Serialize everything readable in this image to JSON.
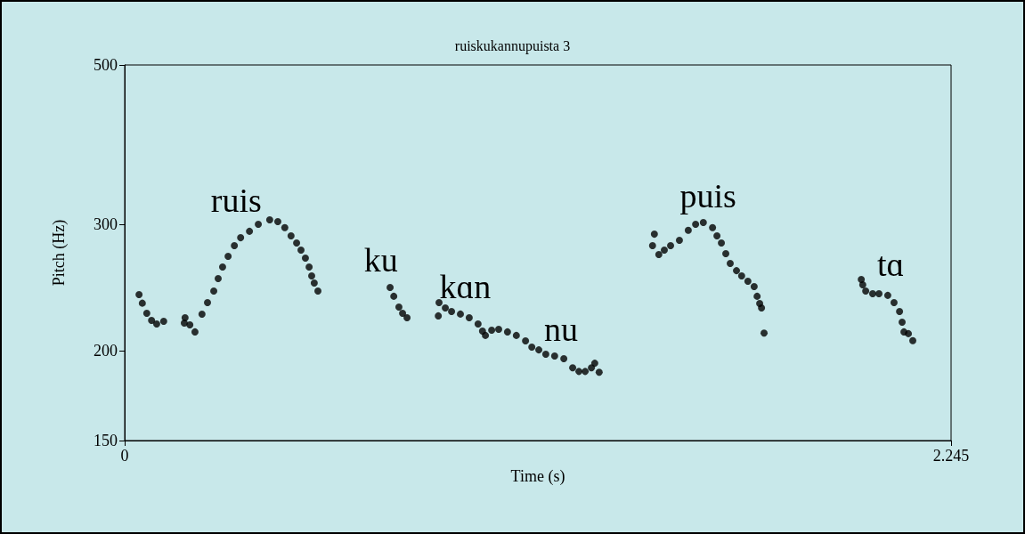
{
  "chart_data": {
    "type": "scatter",
    "title": "ruiskukannupuista 3",
    "xlabel": "Time (s)",
    "ylabel": "Pitch (Hz)",
    "log": "y",
    "marker": "circle",
    "grid": false,
    "xlim": [
      0,
      2.245
    ],
    "xticks": [
      0,
      2.245
    ],
    "ylim": [
      150,
      500
    ],
    "yticks": [
      150,
      200,
      300,
      500
    ],
    "x": [
      0.039,
      0.048,
      0.06,
      0.073,
      0.087,
      0.106,
      0.162,
      0.164,
      0.177,
      0.191,
      0.21,
      0.225,
      0.242,
      0.254,
      0.266,
      0.281,
      0.298,
      0.315,
      0.339,
      0.363,
      0.394,
      0.416,
      0.435,
      0.452,
      0.467,
      0.479,
      0.491,
      0.501,
      0.508,
      0.515,
      0.525,
      0.721,
      0.731,
      0.745,
      0.755,
      0.767,
      0.852,
      0.854,
      0.871,
      0.888,
      0.912,
      0.936,
      0.96,
      0.972,
      0.98,
      0.997,
      1.016,
      1.04,
      1.064,
      1.089,
      1.106,
      1.125,
      1.144,
      1.168,
      1.193,
      1.217,
      1.234,
      1.251,
      1.268,
      1.277,
      1.289,
      1.434,
      1.439,
      1.451,
      1.466,
      1.483,
      1.507,
      1.531,
      1.551,
      1.572,
      1.597,
      1.609,
      1.621,
      1.633,
      1.645,
      1.662,
      1.676,
      1.693,
      1.71,
      1.718,
      1.725,
      1.73,
      1.737,
      2.001,
      2.005,
      2.013,
      2.032,
      2.049,
      2.073,
      2.09,
      2.105,
      2.112,
      2.117,
      2.129,
      2.141
    ],
    "series": [
      {
        "color": "#000000",
        "values": [
          239.5,
          233,
          225.6,
          220.5,
          218,
          219.8,
          218.6,
          222.4,
          217.4,
          212.5,
          224.9,
          233.4,
          242.2,
          252.1,
          261.6,
          270.8,
          280.2,
          287.4,
          293.4,
          300.1,
          304.4,
          302.6,
          296.8,
          289.1,
          282.6,
          276.2,
          269.2,
          261.6,
          254.3,
          248.5,
          242.2,
          245,
          238.2,
          230.1,
          225.6,
          222.4,
          223.7,
          233.4,
          229.5,
          226.9,
          225,
          222.4,
          218,
          213.1,
          210.1,
          213.7,
          214.3,
          212.5,
          210.1,
          206.5,
          202.4,
          200.6,
          197.8,
          196.7,
          195,
          189.4,
          187.2,
          187.2,
          189.4,
          192.2,
          186.7,
          280.2,
          290.7,
          272.3,
          276.2,
          280.2,
          285,
          294.3,
          300.1,
          301.8,
          296.8,
          289.1,
          282.6,
          273.1,
          264.6,
          258.6,
          254.3,
          250,
          245.7,
          238.2,
          232.8,
          229.5,
          211.7,
          251.4,
          247.1,
          242.2,
          240.2,
          240.2,
          238.9,
          233.4,
          226.9,
          219.2,
          212.5,
          211.3,
          206.6
        ]
      }
    ],
    "annotations": [
      "ruis",
      "ku",
      "kɑn",
      "nu",
      "puis",
      "tɑ"
    ]
  }
}
